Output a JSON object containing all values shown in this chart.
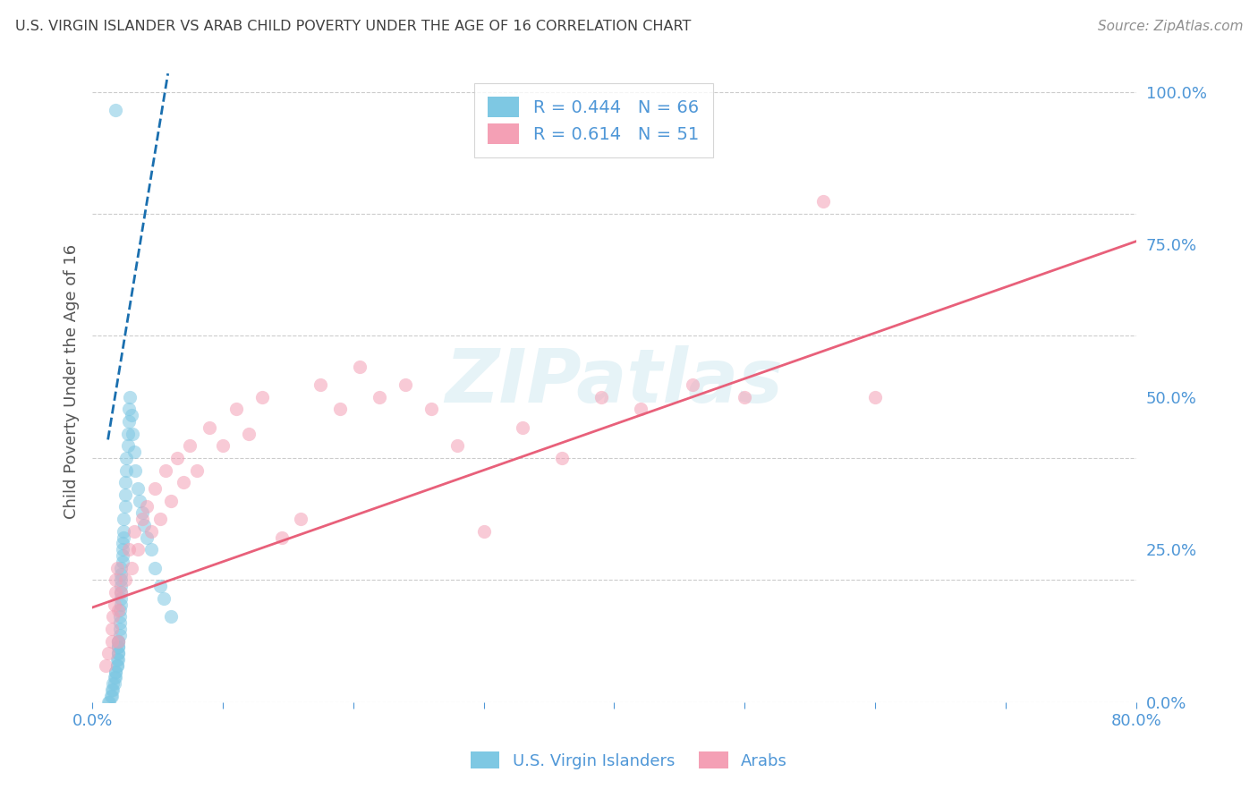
{
  "title": "U.S. VIRGIN ISLANDER VS ARAB CHILD POVERTY UNDER THE AGE OF 16 CORRELATION CHART",
  "source": "Source: ZipAtlas.com",
  "ylabel": "Child Poverty Under the Age of 16",
  "xlim": [
    0.0,
    0.8
  ],
  "ylim": [
    0.0,
    1.05
  ],
  "ytick_vals": [
    0.0,
    0.25,
    0.5,
    0.75,
    1.0
  ],
  "ytick_labels": [
    "0.0%",
    "25.0%",
    "50.0%",
    "75.0%",
    "100.0%"
  ],
  "xtick_vals": [
    0.0,
    0.1,
    0.2,
    0.3,
    0.4,
    0.5,
    0.6,
    0.7,
    0.8
  ],
  "xtick_labels": [
    "0.0%",
    "",
    "",
    "",
    "",
    "",
    "",
    "",
    "80.0%"
  ],
  "blue_R": 0.444,
  "blue_N": 66,
  "pink_R": 0.614,
  "pink_N": 51,
  "blue_color": "#7ec8e3",
  "pink_color": "#f4a0b5",
  "blue_line_color": "#1a6faf",
  "pink_line_color": "#e8607a",
  "watermark": "ZIPatlas",
  "axis_color": "#4f97d7",
  "grid_color": "#cccccc",
  "title_color": "#404040",
  "blue_scatter_x": [
    0.012,
    0.013,
    0.014,
    0.015,
    0.015,
    0.016,
    0.016,
    0.017,
    0.017,
    0.018,
    0.018,
    0.018,
    0.019,
    0.019,
    0.019,
    0.02,
    0.02,
    0.02,
    0.02,
    0.02,
    0.02,
    0.02,
    0.021,
    0.021,
    0.021,
    0.021,
    0.021,
    0.022,
    0.022,
    0.022,
    0.022,
    0.022,
    0.022,
    0.022,
    0.023,
    0.023,
    0.023,
    0.023,
    0.024,
    0.024,
    0.024,
    0.025,
    0.025,
    0.025,
    0.026,
    0.026,
    0.027,
    0.027,
    0.028,
    0.028,
    0.029,
    0.03,
    0.031,
    0.032,
    0.033,
    0.035,
    0.036,
    0.038,
    0.04,
    0.042,
    0.045,
    0.048,
    0.052,
    0.055,
    0.06,
    0.018
  ],
  "blue_scatter_y": [
    0.0,
    0.0,
    0.01,
    0.01,
    0.02,
    0.02,
    0.03,
    0.03,
    0.04,
    0.04,
    0.05,
    0.05,
    0.06,
    0.06,
    0.07,
    0.07,
    0.08,
    0.08,
    0.09,
    0.09,
    0.1,
    0.1,
    0.11,
    0.12,
    0.13,
    0.14,
    0.15,
    0.16,
    0.17,
    0.18,
    0.19,
    0.2,
    0.21,
    0.22,
    0.23,
    0.24,
    0.25,
    0.26,
    0.27,
    0.28,
    0.3,
    0.32,
    0.34,
    0.36,
    0.38,
    0.4,
    0.42,
    0.44,
    0.46,
    0.48,
    0.5,
    0.47,
    0.44,
    0.41,
    0.38,
    0.35,
    0.33,
    0.31,
    0.29,
    0.27,
    0.25,
    0.22,
    0.19,
    0.17,
    0.14,
    0.97
  ],
  "pink_scatter_x": [
    0.01,
    0.012,
    0.015,
    0.015,
    0.016,
    0.017,
    0.018,
    0.018,
    0.019,
    0.02,
    0.02,
    0.022,
    0.025,
    0.028,
    0.03,
    0.032,
    0.035,
    0.038,
    0.042,
    0.045,
    0.048,
    0.052,
    0.056,
    0.06,
    0.065,
    0.07,
    0.075,
    0.08,
    0.09,
    0.1,
    0.11,
    0.12,
    0.13,
    0.145,
    0.16,
    0.175,
    0.19,
    0.205,
    0.22,
    0.24,
    0.26,
    0.28,
    0.3,
    0.33,
    0.36,
    0.39,
    0.42,
    0.46,
    0.5,
    0.56,
    0.6
  ],
  "pink_scatter_y": [
    0.06,
    0.08,
    0.1,
    0.12,
    0.14,
    0.16,
    0.18,
    0.2,
    0.22,
    0.1,
    0.15,
    0.18,
    0.2,
    0.25,
    0.22,
    0.28,
    0.25,
    0.3,
    0.32,
    0.28,
    0.35,
    0.3,
    0.38,
    0.33,
    0.4,
    0.36,
    0.42,
    0.38,
    0.45,
    0.42,
    0.48,
    0.44,
    0.5,
    0.27,
    0.3,
    0.52,
    0.48,
    0.55,
    0.5,
    0.52,
    0.48,
    0.42,
    0.28,
    0.45,
    0.4,
    0.5,
    0.48,
    0.52,
    0.5,
    0.82,
    0.5
  ],
  "blue_trend_x": [
    0.012,
    0.058
  ],
  "blue_trend_y": [
    0.43,
    1.03
  ],
  "pink_trend_x": [
    0.0,
    0.8
  ],
  "pink_trend_y": [
    0.155,
    0.755
  ]
}
